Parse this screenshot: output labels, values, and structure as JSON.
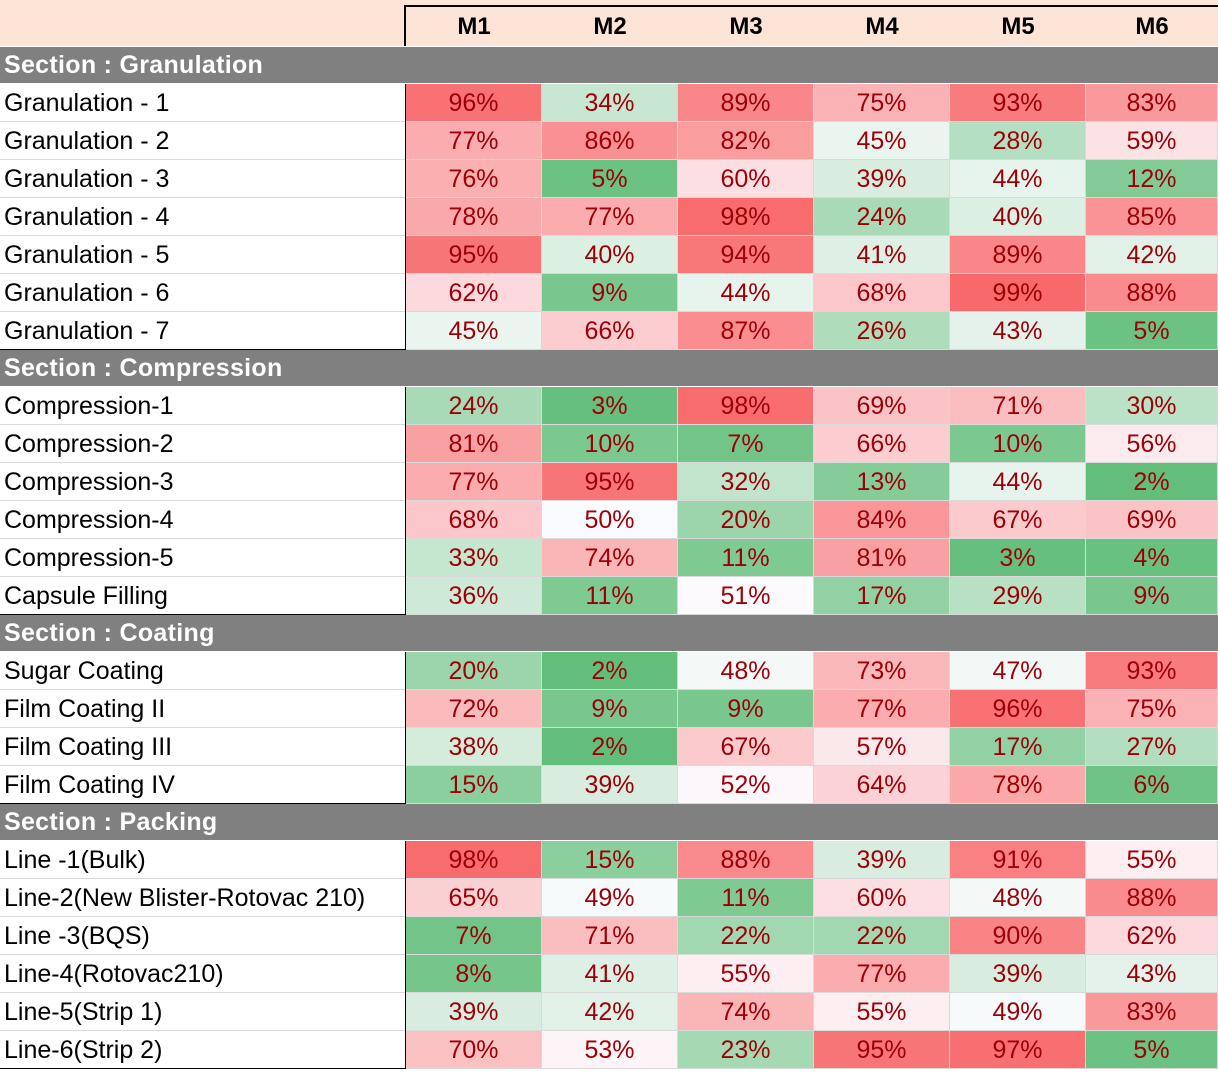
{
  "columns": [
    "M1",
    "M2",
    "M3",
    "M4",
    "M5",
    "M6"
  ],
  "chart_data": {
    "type": "heatmap",
    "columns": [
      "M1",
      "M2",
      "M3",
      "M4",
      "M5",
      "M6"
    ],
    "unit": "%",
    "color_scale": {
      "low": "#63be7b",
      "mid": "#fcfcff",
      "high": "#f8696b"
    },
    "sections": [
      {
        "title": "Section : Granulation",
        "rows": [
          {
            "label": "Granulation - 1",
            "values": [
              96,
              34,
              89,
              75,
              93,
              83
            ]
          },
          {
            "label": "Granulation - 2",
            "values": [
              77,
              86,
              82,
              45,
              28,
              59
            ]
          },
          {
            "label": "Granulation - 3",
            "values": [
              76,
              5,
              60,
              39,
              44,
              12
            ]
          },
          {
            "label": "Granulation - 4",
            "values": [
              78,
              77,
              98,
              24,
              40,
              85
            ]
          },
          {
            "label": "Granulation - 5",
            "values": [
              95,
              40,
              94,
              41,
              89,
              42
            ]
          },
          {
            "label": "Granulation - 6",
            "values": [
              62,
              9,
              44,
              68,
              99,
              88
            ]
          },
          {
            "label": "Granulation - 7",
            "values": [
              45,
              66,
              87,
              26,
              43,
              5
            ]
          }
        ]
      },
      {
        "title": "Section : Compression",
        "rows": [
          {
            "label": "Compression-1",
            "values": [
              24,
              3,
              98,
              69,
              71,
              30
            ]
          },
          {
            "label": "Compression-2",
            "values": [
              81,
              10,
              7,
              66,
              10,
              56
            ]
          },
          {
            "label": "Compression-3",
            "values": [
              77,
              95,
              32,
              13,
              44,
              2
            ]
          },
          {
            "label": "Compression-4",
            "values": [
              68,
              50,
              20,
              84,
              67,
              69
            ]
          },
          {
            "label": "Compression-5",
            "values": [
              33,
              74,
              11,
              81,
              3,
              4
            ]
          },
          {
            "label": "Capsule Filling",
            "values": [
              36,
              11,
              51,
              17,
              29,
              9
            ]
          }
        ]
      },
      {
        "title": "Section : Coating",
        "rows": [
          {
            "label": "Sugar Coating",
            "values": [
              20,
              2,
              48,
              73,
              47,
              93
            ]
          },
          {
            "label": "Film Coating II",
            "values": [
              72,
              9,
              9,
              77,
              96,
              75
            ]
          },
          {
            "label": "Film Coating III",
            "values": [
              38,
              2,
              67,
              57,
              17,
              27
            ]
          },
          {
            "label": "Film Coating IV",
            "values": [
              15,
              39,
              52,
              64,
              78,
              6
            ]
          }
        ]
      },
      {
        "title": "Section : Packing",
        "rows": [
          {
            "label": "Line -1(Bulk)",
            "values": [
              98,
              15,
              88,
              39,
              91,
              55
            ]
          },
          {
            "label": "Line-2(New Blister-Rotovac 210)",
            "values": [
              65,
              49,
              11,
              60,
              48,
              88
            ]
          },
          {
            "label": "Line -3(BQS)",
            "values": [
              7,
              71,
              22,
              22,
              90,
              62
            ]
          },
          {
            "label": "Line-4(Rotovac210)",
            "values": [
              8,
              41,
              55,
              77,
              39,
              43
            ]
          },
          {
            "label": "Line-5(Strip 1)",
            "values": [
              39,
              42,
              74,
              55,
              49,
              83
            ]
          },
          {
            "label": "Line-6(Strip 2)",
            "values": [
              70,
              53,
              23,
              95,
              97,
              5
            ]
          }
        ]
      }
    ]
  }
}
